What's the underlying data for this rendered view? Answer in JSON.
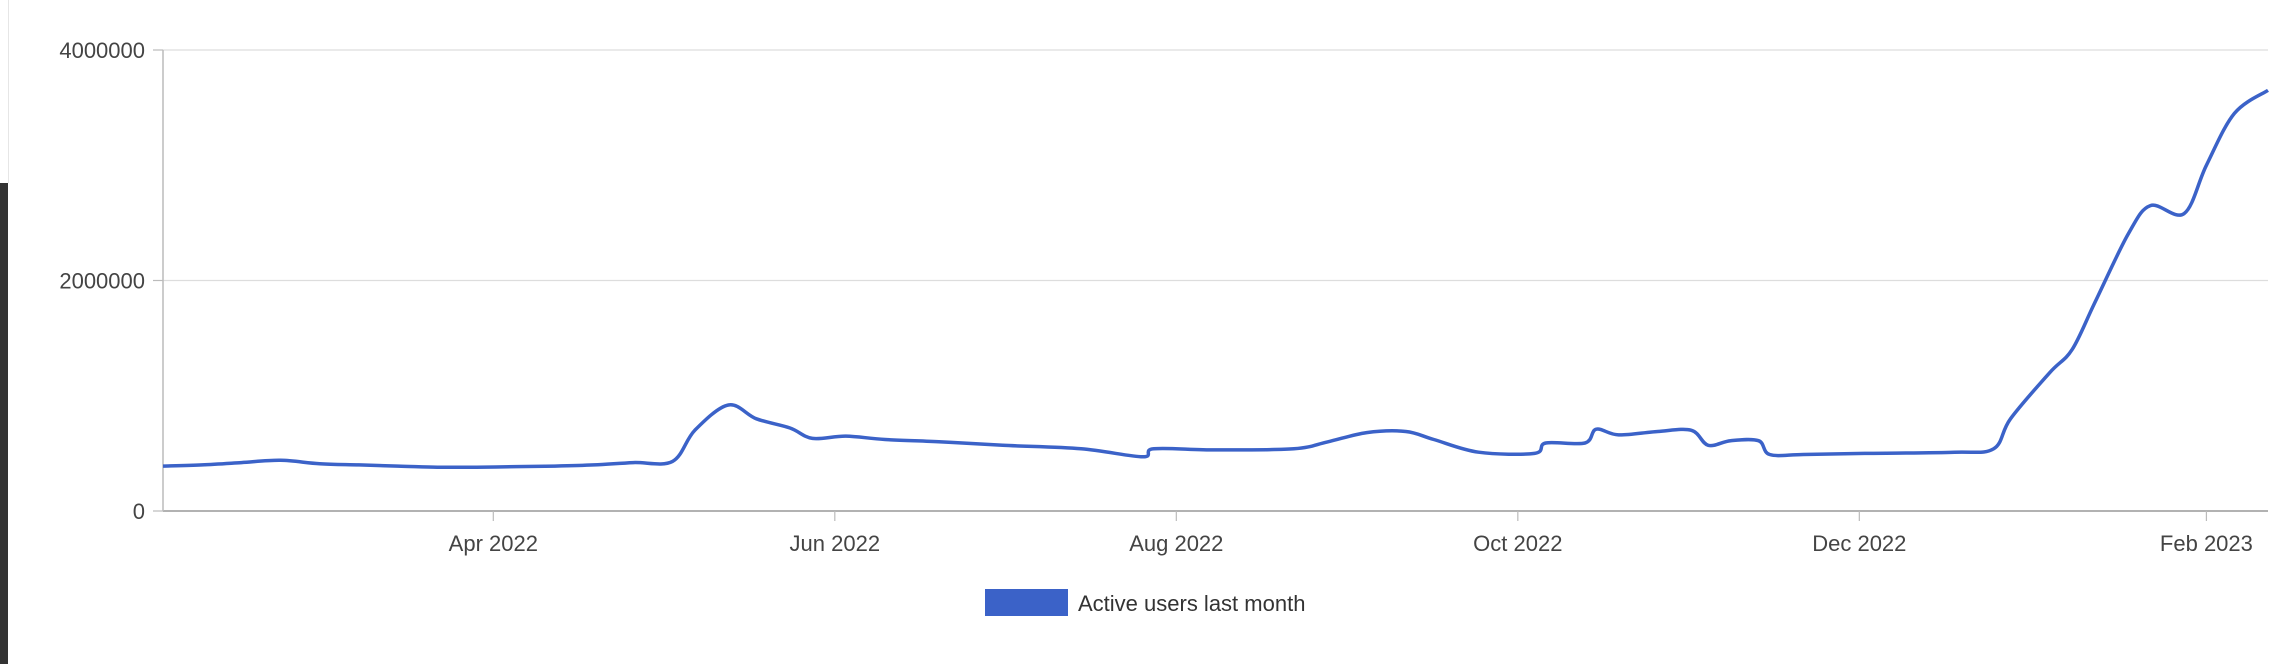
{
  "chart_data": {
    "type": "line",
    "title": "",
    "xlabel": "",
    "ylabel": "",
    "x_range": [
      "2022-02-01",
      "2023-02-12"
    ],
    "ylim": [
      0,
      4000000
    ],
    "y_ticks": [
      0,
      2000000,
      4000000
    ],
    "y_tick_labels": [
      "0",
      "2000000",
      "4000000"
    ],
    "x_ticks": [
      "2022-04-01",
      "2022-06-01",
      "2022-08-01",
      "2022-10-01",
      "2022-12-01",
      "2023-02-01"
    ],
    "x_tick_labels": [
      "Apr 2022",
      "Jun 2022",
      "Aug 2022",
      "Oct 2022",
      "Dec 2022",
      "Feb 2023"
    ],
    "grid": true,
    "legend_position": "bottom",
    "series": [
      {
        "name": "Active users last month",
        "color": "#3b62c8",
        "points": [
          [
            "2022-02-01",
            390000
          ],
          [
            "2022-02-08",
            400000
          ],
          [
            "2022-02-15",
            420000
          ],
          [
            "2022-02-22",
            440000
          ],
          [
            "2022-03-01",
            410000
          ],
          [
            "2022-03-08",
            400000
          ],
          [
            "2022-03-15",
            390000
          ],
          [
            "2022-03-22",
            380000
          ],
          [
            "2022-03-29",
            380000
          ],
          [
            "2022-04-05",
            385000
          ],
          [
            "2022-04-12",
            390000
          ],
          [
            "2022-04-19",
            400000
          ],
          [
            "2022-04-26",
            420000
          ],
          [
            "2022-05-03",
            430000
          ],
          [
            "2022-05-07",
            700000
          ],
          [
            "2022-05-13",
            920000
          ],
          [
            "2022-05-18",
            800000
          ],
          [
            "2022-05-24",
            720000
          ],
          [
            "2022-05-28",
            630000
          ],
          [
            "2022-06-03",
            650000
          ],
          [
            "2022-06-10",
            620000
          ],
          [
            "2022-06-20",
            600000
          ],
          [
            "2022-07-01",
            570000
          ],
          [
            "2022-07-15",
            540000
          ],
          [
            "2022-07-26",
            470000
          ],
          [
            "2022-07-28",
            540000
          ],
          [
            "2022-08-08",
            530000
          ],
          [
            "2022-08-22",
            540000
          ],
          [
            "2022-08-28",
            600000
          ],
          [
            "2022-09-04",
            680000
          ],
          [
            "2022-09-11",
            690000
          ],
          [
            "2022-09-16",
            620000
          ],
          [
            "2022-09-24",
            510000
          ],
          [
            "2022-10-04",
            500000
          ],
          [
            "2022-10-06",
            590000
          ],
          [
            "2022-10-13",
            590000
          ],
          [
            "2022-10-15",
            710000
          ],
          [
            "2022-10-19",
            660000
          ],
          [
            "2022-10-26",
            690000
          ],
          [
            "2022-11-01",
            700000
          ],
          [
            "2022-11-04",
            570000
          ],
          [
            "2022-11-08",
            610000
          ],
          [
            "2022-11-13",
            610000
          ],
          [
            "2022-11-15",
            490000
          ],
          [
            "2022-11-21",
            490000
          ],
          [
            "2022-12-02",
            500000
          ],
          [
            "2022-12-18",
            510000
          ],
          [
            "2022-12-25",
            540000
          ],
          [
            "2022-12-28",
            800000
          ],
          [
            "2023-01-04",
            1200000
          ],
          [
            "2023-01-08",
            1400000
          ],
          [
            "2023-01-12",
            1800000
          ],
          [
            "2023-01-18",
            2400000
          ],
          [
            "2023-01-22",
            2650000
          ],
          [
            "2023-01-28",
            2580000
          ],
          [
            "2023-02-01",
            3000000
          ],
          [
            "2023-02-06",
            3450000
          ],
          [
            "2023-02-12",
            3650000
          ]
        ]
      }
    ]
  }
}
